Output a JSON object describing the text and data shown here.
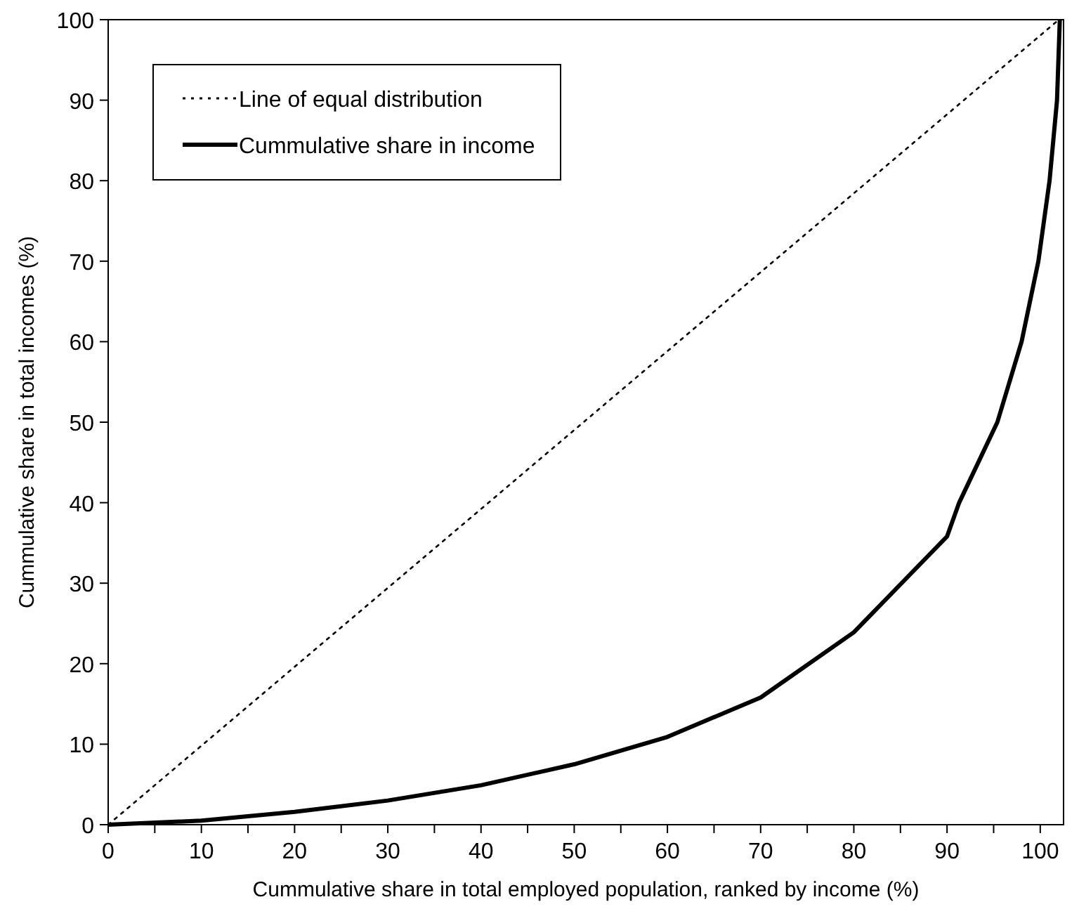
{
  "chart_data": {
    "type": "line",
    "xlabel": "Cummulative share in total employed population, ranked by income (%)",
    "ylabel": "Cummulative share in total incomes (%)",
    "xlim": [
      0,
      102.5
    ],
    "ylim": [
      0,
      100
    ],
    "xticks": [
      0,
      {
        "value": 5,
        "label": null
      },
      10,
      {
        "value": 15,
        "label": null
      },
      20,
      {
        "value": 25,
        "label": null
      },
      30,
      {
        "value": 35,
        "label": null
      },
      40,
      {
        "value": 45,
        "label": null
      },
      50,
      {
        "value": 55,
        "label": null
      },
      60,
      {
        "value": 65,
        "label": null
      },
      70,
      {
        "value": 75,
        "label": null
      },
      80,
      {
        "value": 85,
        "label": null
      },
      90,
      {
        "value": 95,
        "label": null
      },
      100
    ],
    "yticks": [
      0,
      10,
      20,
      30,
      40,
      50,
      60,
      70,
      80,
      90,
      100
    ],
    "grid": false,
    "legend": "top left",
    "marker": "none",
    "series": [
      {
        "name": "Line of equal distribution",
        "color": "#000000",
        "line_style": "dotted",
        "x": [
          0,
          102
        ],
        "values": [
          0,
          100
        ]
      },
      {
        "name": "Cummulative share in income",
        "color": "#000000",
        "line_style": "solid",
        "x": [
          0,
          10,
          20,
          30,
          40,
          50,
          60,
          70,
          80,
          90,
          91.3,
          95.4,
          98,
          99.8,
          101,
          101.8,
          102.1
        ],
        "values": [
          0,
          0.5,
          1.6,
          3.0,
          4.9,
          7.5,
          10.9,
          15.8,
          23.9,
          35.8,
          40,
          50,
          60,
          70,
          80,
          90,
          100
        ]
      }
    ]
  }
}
